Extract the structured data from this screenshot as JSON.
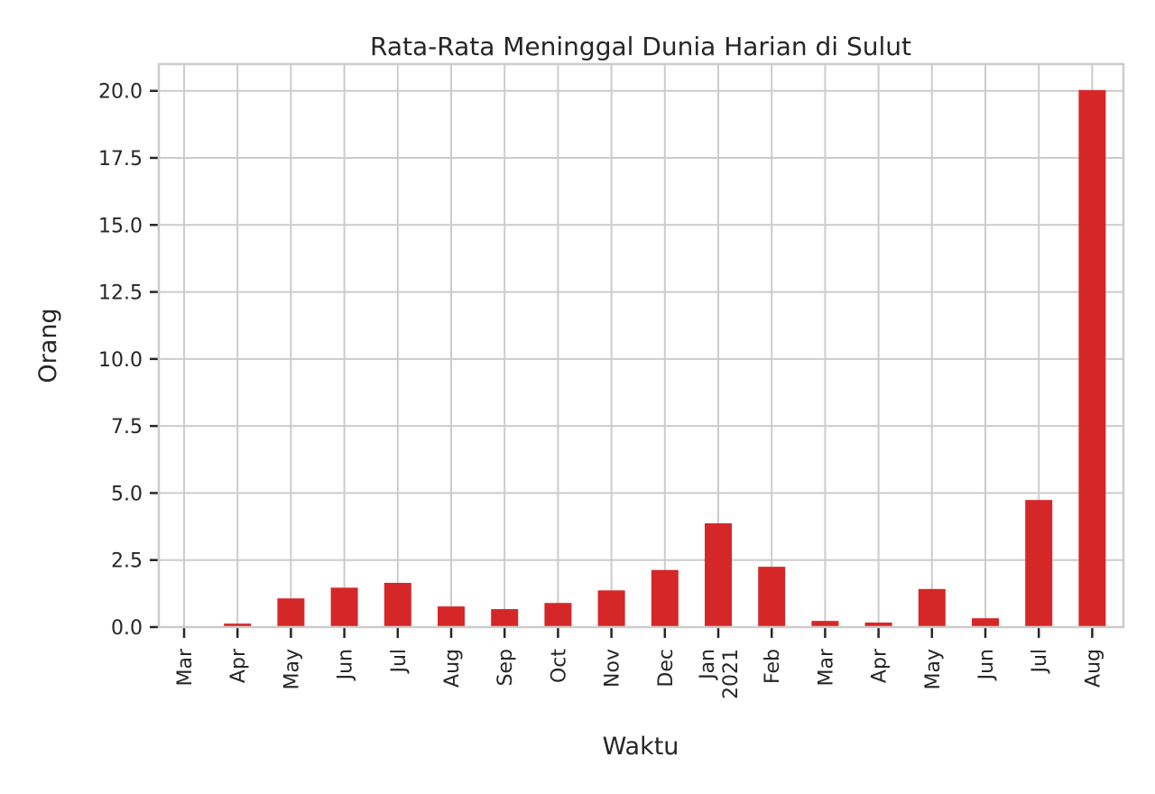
{
  "chart_data": {
    "type": "bar",
    "title": "Rata-Rata Meninggal Dunia Harian di Sulut",
    "xlabel": "Waktu",
    "ylabel": "Orang",
    "ylim": [
      0,
      21
    ],
    "yticks": [
      "0.0",
      "2.5",
      "5.0",
      "7.5",
      "10.0",
      "12.5",
      "15.0",
      "17.5",
      "20.0"
    ],
    "grid": true,
    "bar_color": "#d62728",
    "categories": [
      [
        "Mar"
      ],
      [
        "Apr"
      ],
      [
        "May"
      ],
      [
        "Jun"
      ],
      [
        "Jul"
      ],
      [
        "Aug"
      ],
      [
        "Sep"
      ],
      [
        "Oct"
      ],
      [
        "Nov"
      ],
      [
        "Dec"
      ],
      [
        "Jan",
        "2021"
      ],
      [
        "Feb"
      ],
      [
        "Mar"
      ],
      [
        "Apr"
      ],
      [
        "May"
      ],
      [
        "Jun"
      ],
      [
        "Jul"
      ],
      [
        "Aug"
      ]
    ],
    "values": [
      0.0,
      0.13,
      1.07,
      1.47,
      1.65,
      0.77,
      0.67,
      0.9,
      1.37,
      2.13,
      3.87,
      2.25,
      0.23,
      0.17,
      1.42,
      0.33,
      4.74,
      20.03
    ]
  }
}
